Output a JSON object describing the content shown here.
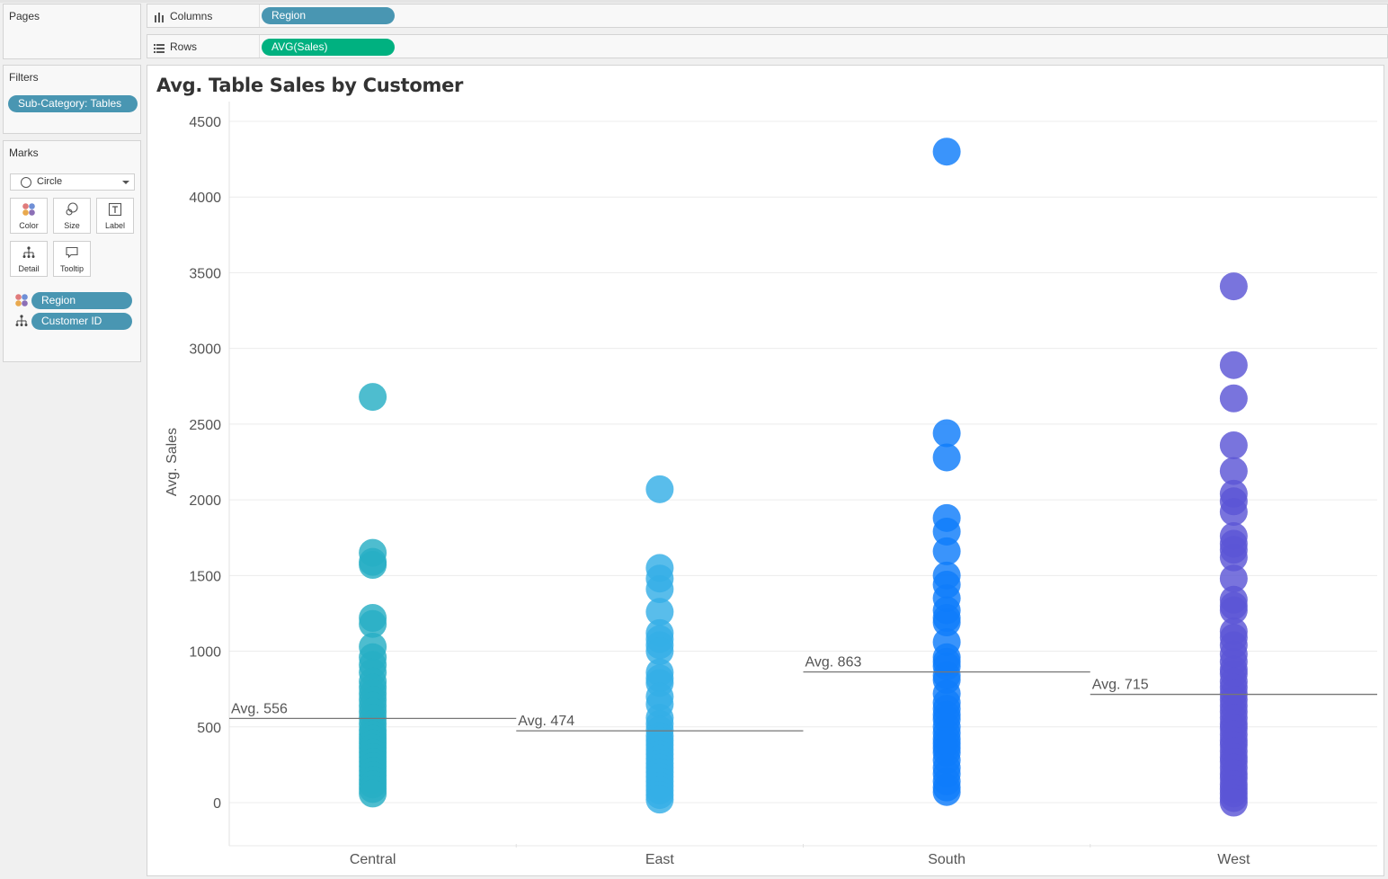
{
  "pages": {
    "title": "Pages"
  },
  "shelves": {
    "columns": {
      "label": "Columns",
      "pill": "Region",
      "pill_color": "#4996b2"
    },
    "rows": {
      "label": "Rows",
      "pill": "AVG(Sales)",
      "pill_color": "#00b180"
    }
  },
  "filters": {
    "title": "Filters",
    "items": [
      {
        "label": "Sub-Category: Tables",
        "color": "#4996b2"
      }
    ]
  },
  "marks": {
    "title": "Marks",
    "mark_type": "Circle",
    "buttons": [
      {
        "label": "Color",
        "icon": "color-icon"
      },
      {
        "label": "Size",
        "icon": "size-icon"
      },
      {
        "label": "Label",
        "icon": "label-icon"
      },
      {
        "label": "Detail",
        "icon": "detail-icon"
      },
      {
        "label": "Tooltip",
        "icon": "tooltip-icon"
      }
    ],
    "fields": [
      {
        "label": "Region",
        "icon": "color-icon"
      },
      {
        "label": "Customer ID",
        "icon": "detail-icon"
      }
    ]
  },
  "view": {
    "title": "Avg. Table Sales by Customer"
  },
  "chart_data": {
    "type": "scatter",
    "title": "Avg. Table Sales by Customer",
    "ylabel": "Avg. Sales",
    "xlabel": "",
    "categories": [
      "Central",
      "East",
      "South",
      "West"
    ],
    "ylim": [
      -280,
      4520
    ],
    "yticks": [
      0,
      500,
      1000,
      1500,
      2000,
      2500,
      3000,
      3500,
      4000,
      4500
    ],
    "grid": true,
    "colors": {
      "Central": "#27aec5",
      "East": "#35aee7",
      "South": "#0f7dfa",
      "West": "#5c55d6"
    },
    "series": [
      {
        "name": "Central",
        "values": [
          2680,
          1650,
          1590,
          1570,
          1220,
          1180,
          1030,
          960,
          910,
          860,
          800,
          760,
          720,
          680,
          640,
          600,
          560,
          520,
          480,
          450,
          420,
          390,
          360,
          330,
          300,
          270,
          240,
          210,
          180,
          150,
          120,
          90,
          60
        ]
      },
      {
        "name": "East",
        "values": [
          2070,
          1550,
          1480,
          1410,
          1260,
          1120,
          1080,
          1040,
          1000,
          860,
          820,
          790,
          700,
          650,
          560,
          520,
          480,
          440,
          410,
          380,
          350,
          320,
          290,
          260,
          230,
          200,
          170,
          140,
          110,
          80,
          50,
          20
        ]
      },
      {
        "name": "South",
        "values": [
          4300,
          2440,
          2280,
          1880,
          1790,
          1660,
          1500,
          1440,
          1350,
          1270,
          1220,
          1190,
          1060,
          960,
          930,
          900,
          840,
          810,
          720,
          660,
          620,
          580,
          550,
          500,
          460,
          420,
          390,
          360,
          330,
          280,
          230,
          190,
          140,
          100,
          70
        ]
      },
      {
        "name": "West",
        "values": [
          3410,
          2890,
          2670,
          2360,
          2190,
          2040,
          1990,
          1920,
          1760,
          1710,
          1670,
          1620,
          1480,
          1340,
          1300,
          1270,
          1130,
          1090,
          1040,
          980,
          930,
          880,
          850,
          800,
          760,
          720,
          680,
          640,
          600,
          560,
          520,
          490,
          450,
          410,
          380,
          340,
          300,
          270,
          230,
          190,
          160,
          120,
          90,
          60,
          30,
          0
        ]
      }
    ],
    "reference_lines": [
      {
        "region": "Central",
        "value": 556,
        "label": "Avg. 556"
      },
      {
        "region": "East",
        "value": 474,
        "label": "Avg. 474"
      },
      {
        "region": "South",
        "value": 863,
        "label": "Avg. 863"
      },
      {
        "region": "West",
        "value": 715,
        "label": "Avg. 715"
      }
    ]
  }
}
